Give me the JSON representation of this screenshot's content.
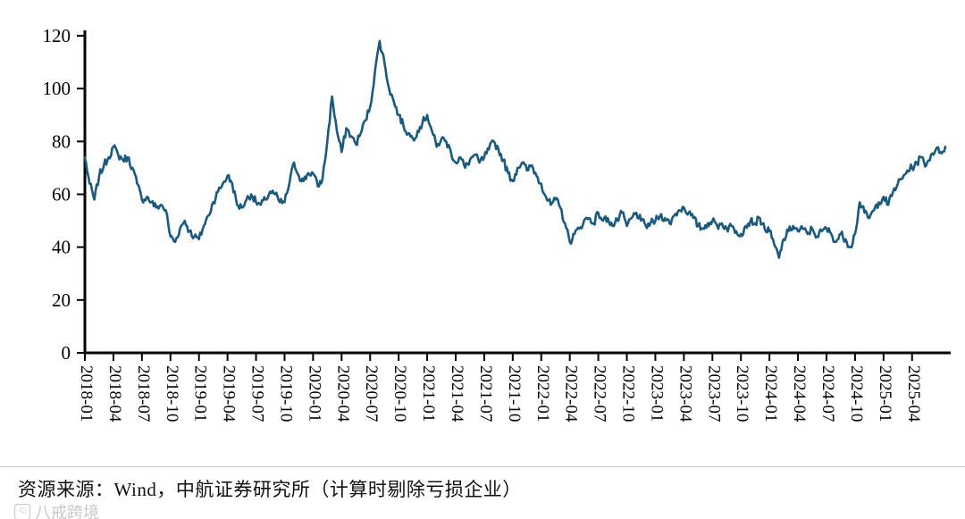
{
  "chart_data": {
    "type": "line",
    "title": "",
    "xlabel": "",
    "ylabel": "",
    "ylim": [
      0,
      120
    ],
    "yticks": [
      0,
      20,
      40,
      60,
      80,
      100,
      120
    ],
    "x_tick_labels": [
      "2018-01",
      "2018-04",
      "2018-07",
      "2018-10",
      "2019-01",
      "2019-04",
      "2019-07",
      "2019-10",
      "2020-01",
      "2020-04",
      "2020-07",
      "2020-10",
      "2021-01",
      "2021-04",
      "2021-07",
      "2021-10",
      "2022-01",
      "2022-04",
      "2022-07",
      "2022-10",
      "2023-01",
      "2023-04",
      "2023-07",
      "2023-10",
      "2024-01",
      "2024-04",
      "2024-07",
      "2024-10",
      "2025-01",
      "2025-04"
    ],
    "x_tick_every_n_points": 6,
    "points_per_month": 2,
    "line_color": "#1b5a7d",
    "noise_amplitude": 1.5,
    "grid": "off",
    "legend": "none",
    "values": [
      74,
      64,
      58,
      67,
      71,
      74,
      78,
      75,
      73,
      74,
      70,
      64,
      58,
      59,
      57,
      55,
      56,
      54,
      44,
      42,
      47,
      50,
      46,
      44,
      43,
      48,
      52,
      57,
      61,
      64,
      67,
      64,
      56,
      55,
      58,
      60,
      57,
      56,
      58,
      61,
      60,
      57,
      57,
      64,
      72,
      67,
      65,
      68,
      68,
      63,
      66,
      80,
      97,
      84,
      76,
      85,
      82,
      79,
      83,
      88,
      93,
      106,
      118,
      110,
      100,
      95,
      90,
      86,
      83,
      81,
      84,
      87,
      90,
      84,
      78,
      81,
      80,
      76,
      72,
      74,
      70,
      73,
      75,
      72,
      74,
      77,
      80,
      77,
      73,
      68,
      65,
      70,
      72,
      69,
      71,
      67,
      64,
      59,
      56,
      58,
      55,
      49,
      42,
      45,
      47,
      50,
      51,
      49,
      53,
      50,
      51,
      48,
      50,
      53,
      48,
      51,
      53,
      50,
      48,
      49,
      50,
      52,
      51,
      49,
      52,
      54,
      55,
      53,
      51,
      48,
      47,
      49,
      50,
      48,
      49,
      47,
      48,
      46,
      45,
      48,
      50,
      49,
      51,
      47,
      46,
      41,
      36,
      43,
      46,
      48,
      46,
      47,
      45,
      47,
      44,
      46,
      47,
      45,
      42,
      45,
      43,
      40,
      45,
      57,
      53,
      51,
      54,
      57,
      59,
      56,
      61,
      64,
      66,
      69,
      70,
      72,
      74,
      71,
      75,
      77,
      76,
      78
    ]
  },
  "footer": {
    "source_note": "资源来源：Wind，中航证券研究所（计算时剔除亏损企业）"
  },
  "watermark": {
    "icon_label": "©",
    "text": "八戒跨境"
  }
}
